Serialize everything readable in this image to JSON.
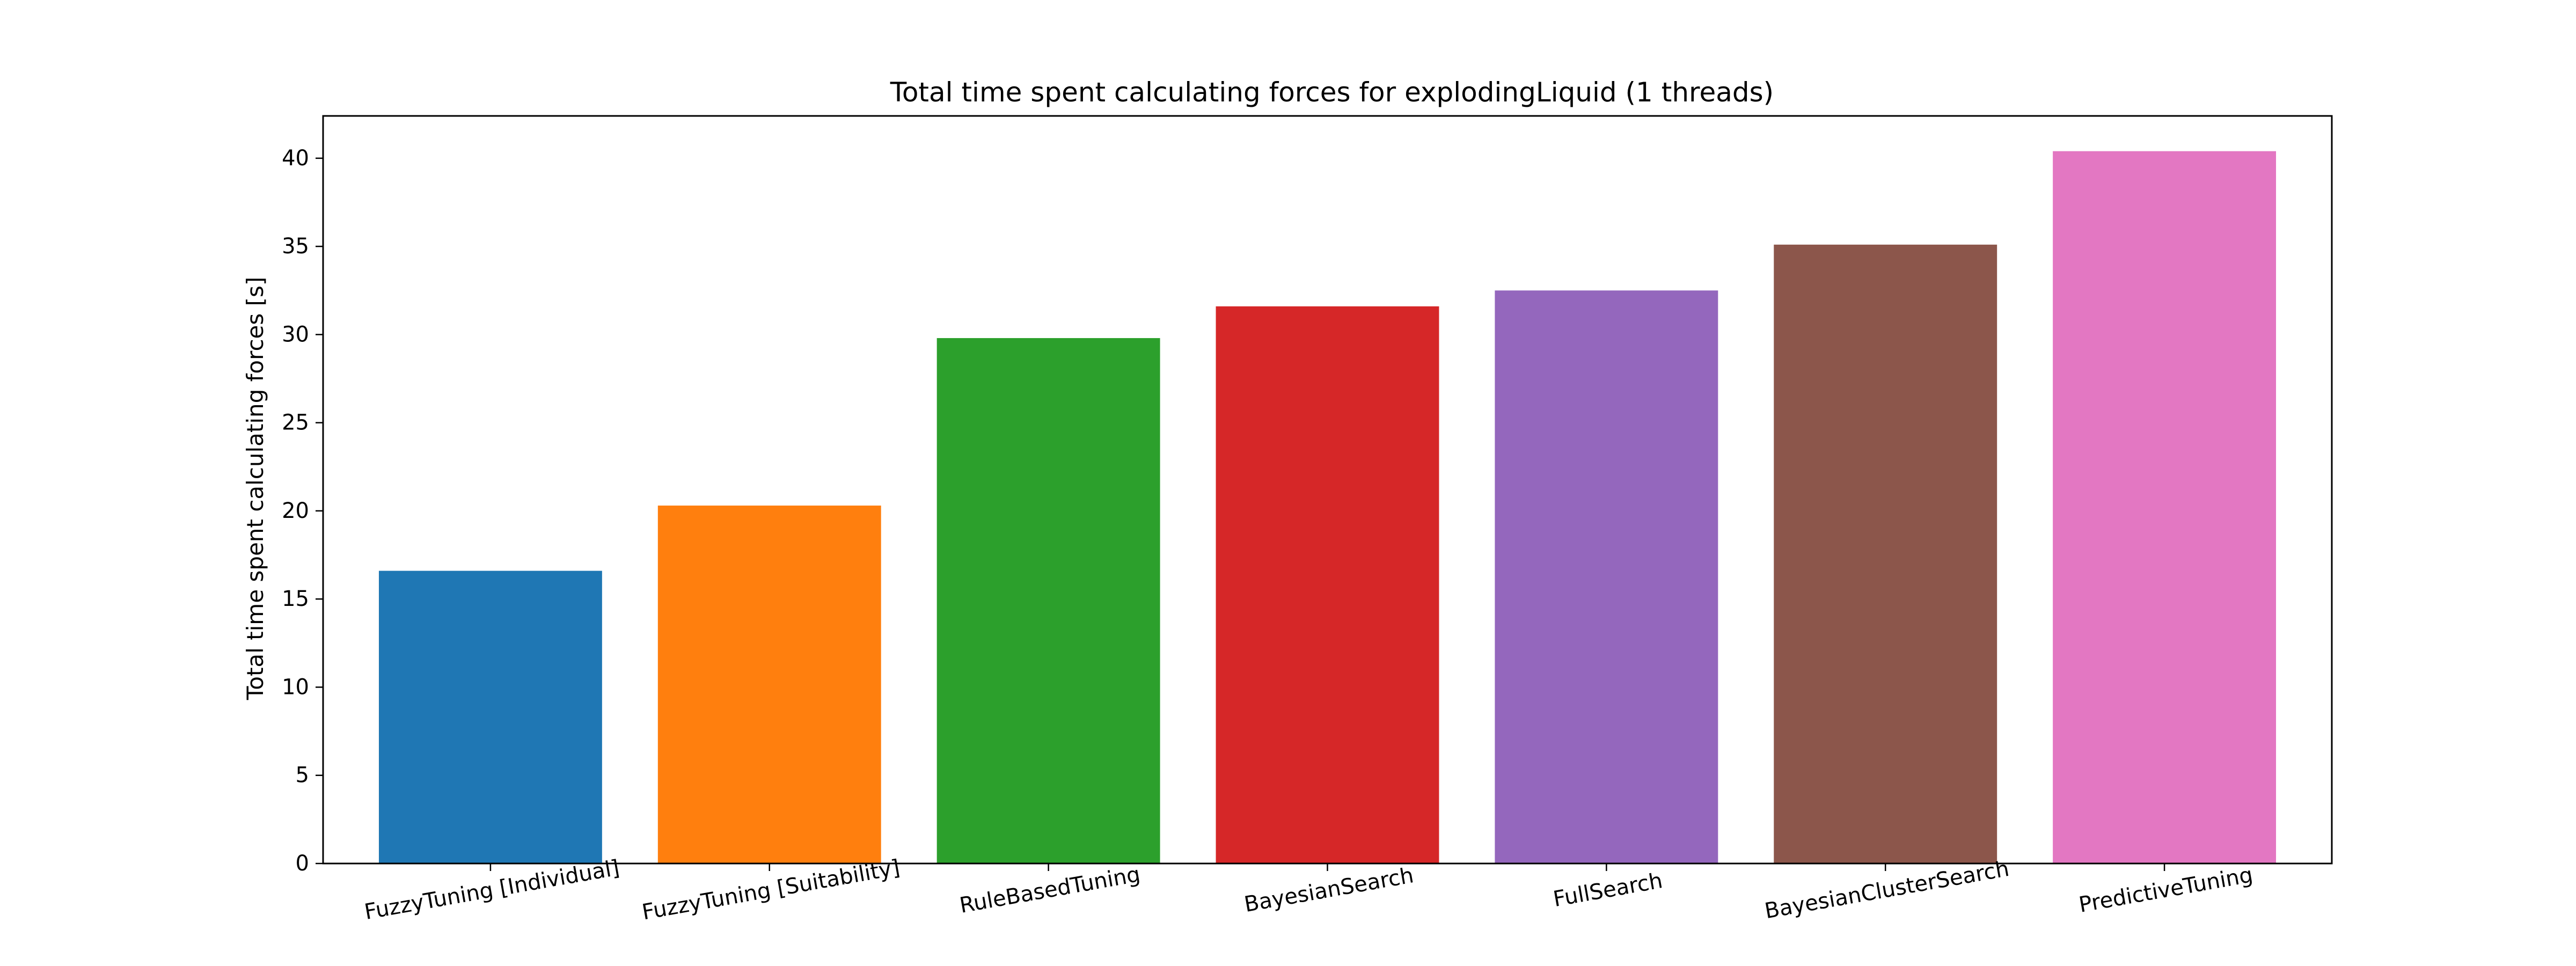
{
  "chart_data": {
    "type": "bar",
    "title": "Total time spent calculating forces for explodingLiquid (1 threads)",
    "xlabel": "",
    "ylabel": "Total time spent calculating forces [s]",
    "ylim": [
      0,
      42.4
    ],
    "yticks": [
      0,
      5,
      10,
      15,
      20,
      25,
      30,
      35,
      40
    ],
    "grid": false,
    "categories": [
      "FuzzyTuning [Individual]",
      "FuzzyTuning [Suitability]",
      "RuleBasedTuning",
      "BayesianSearch",
      "FullSearch",
      "BayesianClusterSearch",
      "PredictiveTuning"
    ],
    "values": [
      16.6,
      20.3,
      29.8,
      31.6,
      32.5,
      35.1,
      40.4
    ],
    "colors": [
      "#1f77b4",
      "#ff7f0e",
      "#2ca02c",
      "#d62728",
      "#9467bd",
      "#8c564b",
      "#e377c2"
    ]
  }
}
